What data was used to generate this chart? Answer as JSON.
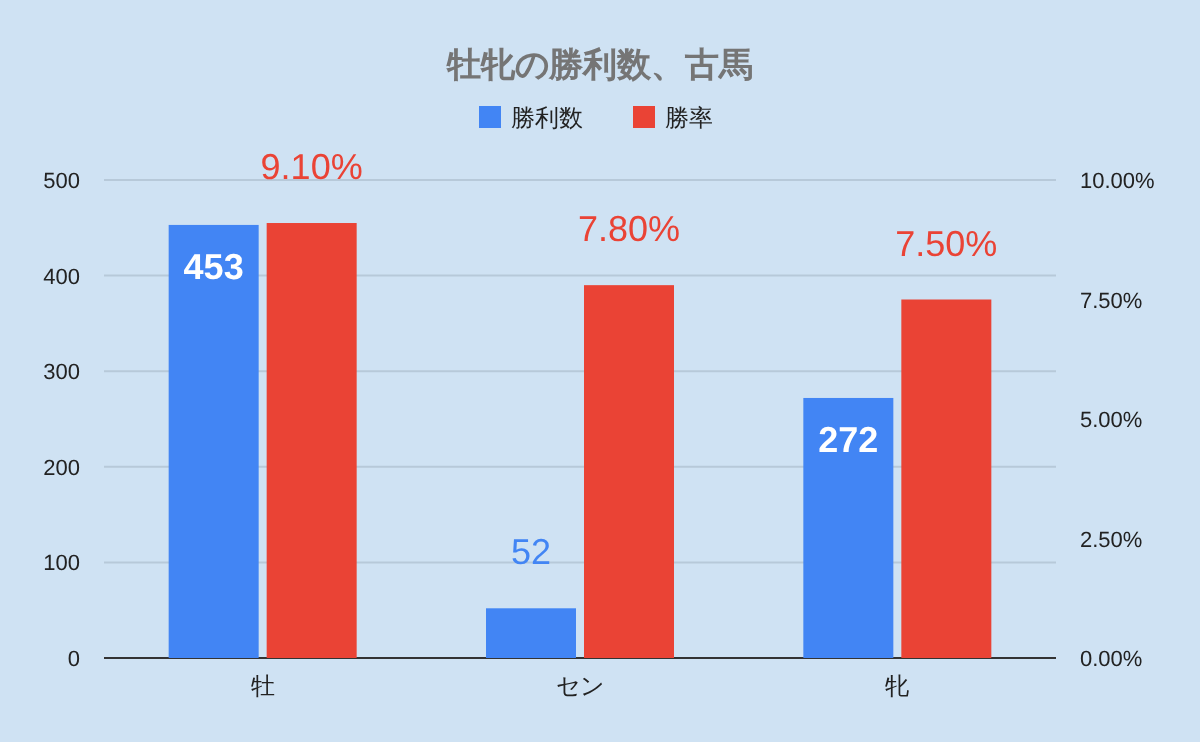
{
  "chart_data": {
    "type": "bar",
    "title": "牡牝の勝利数、古馬",
    "categories": [
      "牡",
      "セン",
      "牝"
    ],
    "series": [
      {
        "name": "勝利数",
        "color": "#4285f4",
        "values": [
          453,
          52,
          272
        ],
        "value_labels": [
          "453",
          "52",
          "272"
        ]
      },
      {
        "name": "勝率",
        "color": "#ea4335",
        "values": [
          9.1,
          7.8,
          7.5
        ],
        "axis": "y2",
        "value_labels": [
          "9.10%",
          "7.80%",
          "7.50%"
        ]
      }
    ],
    "ylim": [
      0,
      500
    ],
    "yticks": [
      0,
      100,
      200,
      300,
      400,
      500
    ],
    "y2lim": [
      0,
      10
    ],
    "y2ticks": [
      {
        "value": 0,
        "label": "0.00%"
      },
      {
        "value": 2.5,
        "label": "2.50%"
      },
      {
        "value": 5,
        "label": "5.00%"
      },
      {
        "value": 7.5,
        "label": "7.50%"
      },
      {
        "value": 10,
        "label": "10.00%"
      }
    ],
    "grid": "y",
    "legend": "top"
  }
}
